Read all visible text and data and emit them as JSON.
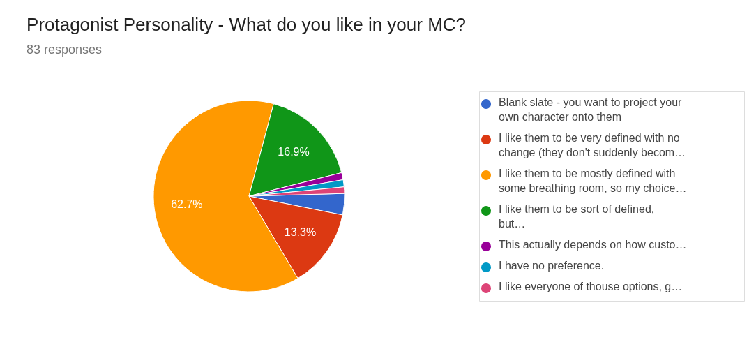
{
  "chart_data": {
    "type": "pie",
    "title": "Protagonist Personality - What do you like in your MC?",
    "subtitle": "83 responses",
    "categories": [
      "Blank slate - you want to project your own character onto them",
      "I like them to be very defined with no change (they don't suddenly becom…",
      "I like them to be mostly defined with some breathing room, so my choice…",
      "I like them to be sort of defined, but…",
      "This actually depends on how custo…",
      "I have no preference.",
      "I like everyone of thouse options, g…"
    ],
    "values": [
      3.6,
      13.3,
      62.7,
      16.9,
      1.2,
      1.2,
      1.1
    ],
    "colors": [
      "#3366cc",
      "#dc3912",
      "#ff9900",
      "#109618",
      "#990099",
      "#0099c6",
      "#dd4477"
    ],
    "value_labels": [
      null,
      "13.3%",
      "62.7%",
      "16.9%",
      null,
      null,
      null
    ],
    "legend": "right"
  }
}
